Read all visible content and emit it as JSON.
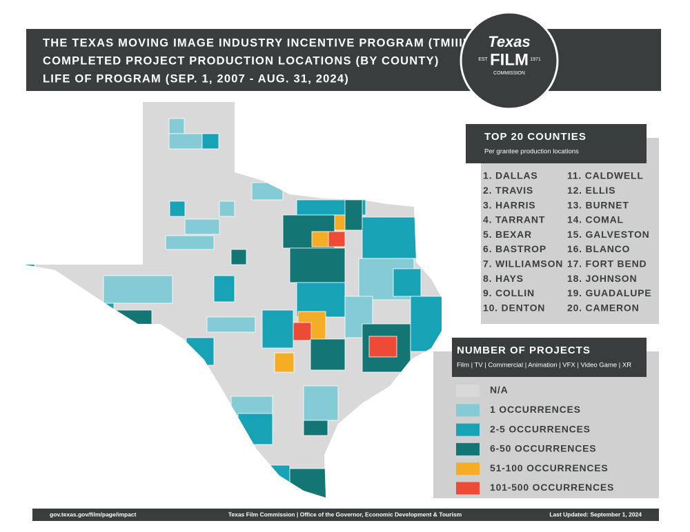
{
  "header": {
    "lines": [
      "THE TEXAS MOVING IMAGE INDUSTRY INCENTIVE PROGRAM (TMIIIP)",
      "COMPLETED PROJECT PRODUCTION LOCATIONS (BY COUNTY)",
      "LIFE OF PROGRAM (SEP. 1, 2007 - AUG. 31, 2024)"
    ]
  },
  "logo": {
    "word": "Texas",
    "film": "FILM",
    "est": "EST",
    "year": "1971",
    "commission": "COMMISSION"
  },
  "top20": {
    "title": "TOP 20 COUNTIES",
    "subtitle": "Per grantee production locations",
    "items": [
      "1. DALLAS",
      "2. TRAVIS",
      "3. HARRIS",
      "4. TARRANT",
      "5. BEXAR",
      "6. BASTROP",
      "7. WILLIAMSON",
      "8. HAYS",
      "9. COLLIN",
      "10. DENTON",
      "11. CALDWELL",
      "12. ELLIS",
      "13. BURNET",
      "14. COMAL",
      "15. GALVESTON",
      "16. BLANCO",
      "17. FORT BEND",
      "18. JOHNSON",
      "19. GUADALUPE",
      "20. CAMERON"
    ]
  },
  "legend": {
    "title": "NUMBER OF PROJECTS",
    "subtitle": "Film | TV | Commercial | Animation | VFX | Video Game | XR",
    "items": [
      {
        "label": "N/A",
        "color": "#d9d9d9"
      },
      {
        "label": "1 OCCURRENCES",
        "color": "#84cbd5"
      },
      {
        "label": "2-5 OCCURRENCES",
        "color": "#17a2b6"
      },
      {
        "label": "6-50 OCCURRENCES",
        "color": "#137674"
      },
      {
        "label": "51-100 OCCURRENCES",
        "color": "#f4ad25"
      },
      {
        "label": "101-500 OCCURRENCES",
        "color": "#ee4b36"
      }
    ]
  },
  "footer": {
    "left": "gov.texas.gov/film/page/impact",
    "center": "Texas Film Commission | Office of the Governor, Economic Development & Tourism",
    "right": "Last Updated: September 1, 2024"
  }
}
